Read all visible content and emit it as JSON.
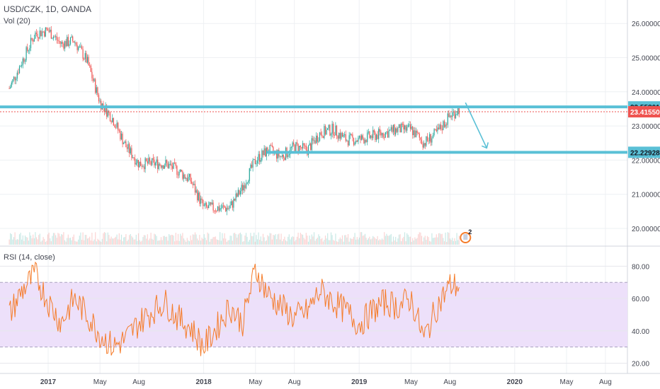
{
  "header": {
    "symbol": "USD/CZK, 1D, OANDA",
    "volume_label": "Vol (20)",
    "rsi_label": "RSI (14, close)",
    "event_badge": "2"
  },
  "colors": {
    "up": "#26a69a",
    "down": "#ef5350",
    "level_line": "#5ac0d6",
    "price_line": "#ef5350",
    "rsi_line": "#f57c2a",
    "rsi_band": "#ede0fa",
    "grid": "#eef0f3",
    "axis_text": "#434651"
  },
  "chart_data": [
    {
      "type": "candlestick",
      "title": "USD/CZK, 1D, OANDA",
      "y_ticks": [
        20.0,
        21.0,
        22.0,
        23.0,
        24.0,
        25.0,
        26.0
      ],
      "y_tick_labels": [
        "20.00000",
        "21.00000",
        "22.00000",
        "23.00000",
        "24.00000",
        "25.00000",
        "26.00000"
      ],
      "x_tick_labels": [
        "2017",
        "May",
        "Aug",
        "2018",
        "May",
        "Aug",
        "2019",
        "May",
        "Aug",
        "2020",
        "May",
        "Aug"
      ],
      "approx_close_path": [
        [
          "2016-10",
          24.1
        ],
        [
          "2016-11",
          24.9
        ],
        [
          "2016-12",
          25.7
        ],
        [
          "2017-01",
          25.8
        ],
        [
          "2017-02",
          25.4
        ],
        [
          "2017-03",
          25.5
        ],
        [
          "2017-04",
          24.9
        ],
        [
          "2017-05",
          23.7
        ],
        [
          "2017-06",
          23.2
        ],
        [
          "2017-07",
          22.4
        ],
        [
          "2017-08",
          21.9
        ],
        [
          "2017-09",
          21.9
        ],
        [
          "2017-10",
          21.9
        ],
        [
          "2017-11",
          21.7
        ],
        [
          "2017-12",
          21.4
        ],
        [
          "2018-01",
          20.6
        ],
        [
          "2018-02",
          20.6
        ],
        [
          "2018-03",
          20.6
        ],
        [
          "2018-04",
          21.2
        ],
        [
          "2018-05",
          22.0
        ],
        [
          "2018-06",
          22.3
        ],
        [
          "2018-07",
          22.1
        ],
        [
          "2018-08",
          22.4
        ],
        [
          "2018-09",
          22.3
        ],
        [
          "2018-10",
          22.8
        ],
        [
          "2018-11",
          22.9
        ],
        [
          "2018-12",
          22.6
        ],
        [
          "2019-01",
          22.6
        ],
        [
          "2019-02",
          22.7
        ],
        [
          "2019-03",
          22.8
        ],
        [
          "2019-04",
          22.9
        ],
        [
          "2019-05",
          22.9
        ],
        [
          "2019-06",
          22.5
        ],
        [
          "2019-07",
          22.8
        ],
        [
          "2019-08",
          23.3
        ]
      ],
      "horizontal_levels": [
        {
          "label": "23.55801",
          "value": 23.55801,
          "style": "support/resistance line"
        },
        {
          "label": "22.22928",
          "value": 22.22928,
          "style": "support/resistance line"
        },
        {
          "label": "23.41550",
          "value": 23.4155,
          "style": "last price"
        }
      ],
      "annotation": "down arrow from 23.55801 toward 22.22928",
      "volume_series": "Vol (20)"
    },
    {
      "type": "line",
      "title": "RSI (14, close)",
      "y_ticks": [
        20,
        40,
        60,
        80
      ],
      "y_tick_labels": [
        "20.00",
        "40.00",
        "60.00",
        "80.00"
      ],
      "band": [
        30,
        70
      ],
      "approx_values": [
        [
          "2016-10",
          50
        ],
        [
          "2016-11",
          65
        ],
        [
          "2016-12",
          75
        ],
        [
          "2017-01",
          58
        ],
        [
          "2017-02",
          45
        ],
        [
          "2017-03",
          60
        ],
        [
          "2017-04",
          50
        ],
        [
          "2017-05",
          38
        ],
        [
          "2017-06",
          30
        ],
        [
          "2017-07",
          35
        ],
        [
          "2017-08",
          45
        ],
        [
          "2017-09",
          52
        ],
        [
          "2017-10",
          58
        ],
        [
          "2017-11",
          48
        ],
        [
          "2017-12",
          42
        ],
        [
          "2018-01",
          30
        ],
        [
          "2018-02",
          42
        ],
        [
          "2018-03",
          55
        ],
        [
          "2018-04",
          45
        ],
        [
          "2018-05",
          78
        ],
        [
          "2018-06",
          62
        ],
        [
          "2018-07",
          55
        ],
        [
          "2018-08",
          48
        ],
        [
          "2018-09",
          52
        ],
        [
          "2018-10",
          65
        ],
        [
          "2018-11",
          58
        ],
        [
          "2018-12",
          52
        ],
        [
          "2019-01",
          44
        ],
        [
          "2019-02",
          52
        ],
        [
          "2019-03",
          58
        ],
        [
          "2019-04",
          55
        ],
        [
          "2019-05",
          60
        ],
        [
          "2019-06",
          35
        ],
        [
          "2019-07",
          55
        ],
        [
          "2019-08",
          68
        ]
      ]
    }
  ]
}
